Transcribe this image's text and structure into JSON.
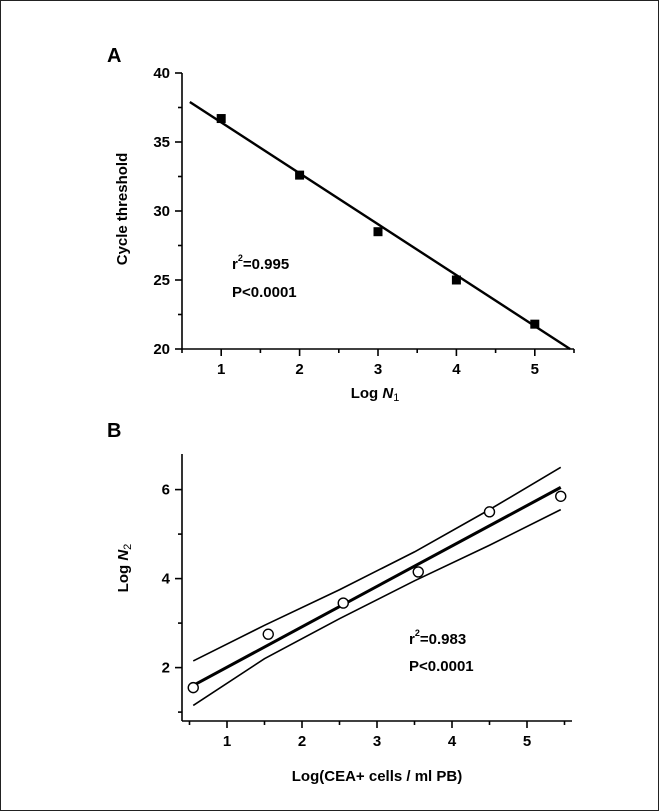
{
  "chart_data": [
    {
      "panel": "A",
      "type": "scatter",
      "xlabel_prefix": "Log ",
      "xlabel_var": "N",
      "xlabel_sub": "1",
      "ylabel": "Cycle threshold",
      "xlim": [
        0.5,
        5.5
      ],
      "ylim": [
        20,
        40
      ],
      "x_ticks": [
        1,
        2,
        3,
        4,
        5
      ],
      "y_ticks": [
        20,
        25,
        30,
        35,
        40
      ],
      "x": [
        1,
        2,
        3,
        4,
        5
      ],
      "y": [
        36.7,
        32.6,
        28.5,
        25.0,
        21.8
      ],
      "marker": "filled-square",
      "fit_line": {
        "x": [
          0.6,
          5.45
        ],
        "y": [
          37.9,
          20.0
        ]
      },
      "annotation": {
        "r_prefix": "r",
        "r_sup": "2",
        "r_value": "=0.995",
        "p": "P<0.0001"
      },
      "grid": false
    },
    {
      "panel": "B",
      "type": "scatter",
      "xlabel": "Log(CEA+ cells / ml PB)",
      "ylabel_prefix": "Log ",
      "ylabel_var": "N",
      "ylabel_sub": "2",
      "xlim": [
        0.4,
        5.6
      ],
      "ylim": [
        0.8,
        6.8
      ],
      "x_ticks": [
        1,
        2,
        3,
        4,
        5
      ],
      "y_ticks": [
        2,
        4,
        6
      ],
      "x": [
        0.55,
        1.55,
        2.55,
        3.55,
        4.5,
        5.45
      ],
      "y": [
        1.55,
        2.75,
        3.45,
        4.15,
        5.5,
        5.85
      ],
      "marker": "open-circle",
      "fit_line": {
        "x": [
          0.55,
          5.45
        ],
        "y": [
          1.6,
          6.05
        ]
      },
      "ci_upper": {
        "x": [
          0.55,
          1.5,
          2.5,
          3.5,
          4.5,
          5.45
        ],
        "y": [
          2.15,
          2.95,
          3.75,
          4.6,
          5.55,
          6.5
        ]
      },
      "ci_lower": {
        "x": [
          0.55,
          1.5,
          2.5,
          3.5,
          4.5,
          5.45
        ],
        "y": [
          1.15,
          2.2,
          3.1,
          3.95,
          4.75,
          5.55
        ]
      },
      "annotation": {
        "r_prefix": "r",
        "r_sup": "2",
        "r_value": "=0.983",
        "p": "P<0.0001"
      },
      "grid": false
    }
  ]
}
